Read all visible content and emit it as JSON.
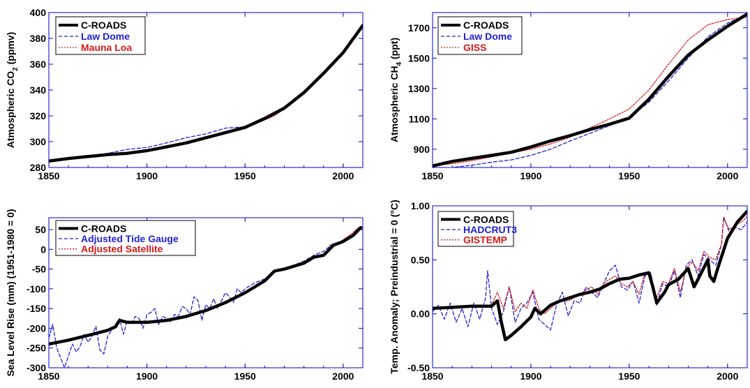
{
  "colors": {
    "model": "#000000",
    "series_blue": "#1f1fd6",
    "series_red": "#d41a1a",
    "axis": "#0000cc",
    "text": "#000000"
  },
  "chart_data": [
    {
      "id": "co2",
      "type": "line",
      "title": "",
      "xlabel": "",
      "ylabel": "Atmospheric CO",
      "ylabel_sub": "2",
      "ylabel_after": " (ppmv)",
      "xlim": [
        1850,
        2010
      ],
      "ylim": [
        280,
        400
      ],
      "xticks": [
        1850,
        1900,
        1950,
        2000
      ],
      "yticks": [
        280,
        300,
        320,
        340,
        360,
        380,
        400
      ],
      "ytick_labels": [
        "280",
        "300",
        "320",
        "340",
        "360",
        "380",
        "400"
      ],
      "legend_position": "top-left",
      "series": [
        {
          "name": "C-ROADS",
          "style": "solid-thick",
          "color": "#000000",
          "x": [
            1850,
            1860,
            1870,
            1880,
            1890,
            1900,
            1910,
            1920,
            1930,
            1940,
            1950,
            1960,
            1970,
            1980,
            1990,
            2000,
            2010
          ],
          "y": [
            285,
            287,
            288.5,
            290,
            291,
            293,
            296,
            299,
            303,
            307,
            311,
            318,
            326,
            338,
            353,
            369,
            390
          ]
        },
        {
          "name": "Law Dome",
          "style": "dashed",
          "color": "#1f1fd6",
          "x": [
            1850,
            1860,
            1870,
            1880,
            1890,
            1900,
            1910,
            1920,
            1930,
            1940,
            1950,
            1960,
            1970,
            1980,
            1990,
            2000,
            2010
          ],
          "y": [
            285,
            286.5,
            288,
            291,
            294,
            295.5,
            299,
            303,
            306,
            310.5,
            311.5,
            317,
            325,
            337,
            352,
            369,
            389
          ]
        },
        {
          "name": "Mauna Loa",
          "style": "dotted",
          "color": "#d41a1a",
          "x": [
            1958,
            1965,
            1970,
            1975,
            1980,
            1985,
            1990,
            1995,
            2000,
            2005,
            2010
          ],
          "y": [
            315.5,
            320,
            325.5,
            331,
            338.5,
            346,
            354,
            361,
            369.5,
            379.5,
            389.5
          ]
        }
      ]
    },
    {
      "id": "ch4",
      "type": "line",
      "title": "",
      "xlabel": "",
      "ylabel": "Atmospheric CH",
      "ylabel_sub": "4",
      "ylabel_after": " (ppt)",
      "xlim": [
        1850,
        2010
      ],
      "ylim": [
        780,
        1800
      ],
      "xticks": [
        1850,
        1900,
        1950,
        2000
      ],
      "yticks": [
        900,
        1100,
        1300,
        1500,
        1700
      ],
      "ytick_labels": [
        "900",
        "1100",
        "1300",
        "1500",
        "1700"
      ],
      "legend_position": "top-left",
      "series": [
        {
          "name": "C-ROADS",
          "style": "solid-thick",
          "color": "#000000",
          "x": [
            1850,
            1860,
            1870,
            1880,
            1890,
            1900,
            1910,
            1920,
            1930,
            1940,
            1950,
            1960,
            1970,
            1980,
            1990,
            2000,
            2010
          ],
          "y": [
            790,
            820,
            840,
            860,
            880,
            915,
            955,
            990,
            1030,
            1065,
            1105,
            1230,
            1380,
            1520,
            1620,
            1710,
            1790
          ]
        },
        {
          "name": "Law Dome",
          "style": "dashed",
          "color": "#1f1fd6",
          "x": [
            1850,
            1860,
            1870,
            1880,
            1890,
            1900,
            1910,
            1920,
            1930,
            1940,
            1950,
            1960,
            1970,
            1980,
            1990,
            2000,
            2010
          ],
          "y": [
            775,
            780,
            795,
            815,
            830,
            860,
            900,
            955,
            1005,
            1055,
            1110,
            1210,
            1350,
            1500,
            1640,
            1730,
            1790
          ]
        },
        {
          "name": "GISS",
          "style": "dotted",
          "color": "#d41a1a",
          "x": [
            1850,
            1860,
            1870,
            1880,
            1890,
            1900,
            1910,
            1920,
            1930,
            1940,
            1950,
            1960,
            1970,
            1980,
            1990,
            2000,
            2010
          ],
          "y": [
            790,
            805,
            825,
            850,
            875,
            900,
            935,
            980,
            1040,
            1100,
            1165,
            1290,
            1460,
            1620,
            1720,
            1755,
            1770
          ]
        }
      ]
    },
    {
      "id": "sea-level",
      "type": "line",
      "title": "",
      "xlabel": "",
      "ylabel": "Sea Level Rise (mm) (1951-1980 = 0)",
      "xlim": [
        1850,
        2010
      ],
      "ylim": [
        -300,
        80
      ],
      "xticks": [
        1850,
        1900,
        1950,
        2000
      ],
      "yticks": [
        -300,
        -250,
        -200,
        -150,
        -100,
        -50,
        0,
        50
      ],
      "ytick_labels": [
        "-300",
        "-250",
        "-200",
        "-150",
        "-100",
        "-50",
        "0",
        "50"
      ],
      "legend_position": "top-left",
      "series": [
        {
          "name": "C-ROADS",
          "style": "solid-thick",
          "color": "#000000",
          "x": [
            1850,
            1860,
            1870,
            1880,
            1884,
            1886,
            1890,
            1900,
            1910,
            1920,
            1930,
            1940,
            1950,
            1960,
            1965,
            1970,
            1980,
            1985,
            1990,
            1995,
            2000,
            2005,
            2009
          ],
          "y": [
            -240,
            -230,
            -218,
            -205,
            -196,
            -180,
            -185,
            -185,
            -180,
            -170,
            -155,
            -135,
            -110,
            -80,
            -55,
            -50,
            -35,
            -20,
            -15,
            10,
            20,
            35,
            55
          ]
        },
        {
          "name": "Adjusted Tide Gauge",
          "style": "dashed",
          "color": "#1f1fd6",
          "x": [
            1850,
            1852,
            1854,
            1856,
            1858,
            1860,
            1862,
            1864,
            1866,
            1868,
            1870,
            1872,
            1874,
            1876,
            1878,
            1880,
            1882,
            1884,
            1886,
            1888,
            1890,
            1892,
            1894,
            1896,
            1898,
            1900,
            1902,
            1904,
            1906,
            1908,
            1910,
            1912,
            1914,
            1916,
            1918,
            1920,
            1922,
            1924,
            1926,
            1928,
            1930,
            1932,
            1934,
            1936,
            1938,
            1940,
            1942,
            1944,
            1946,
            1948,
            1950,
            1955,
            1960,
            1965,
            1970,
            1975,
            1980,
            1985,
            1990,
            1995,
            2000
          ],
          "y": [
            -225,
            -190,
            -250,
            -275,
            -300,
            -270,
            -240,
            -260,
            -245,
            -215,
            -235,
            -220,
            -195,
            -255,
            -265,
            -220,
            -205,
            -190,
            -175,
            -215,
            -180,
            -190,
            -170,
            -175,
            -200,
            -165,
            -160,
            -150,
            -190,
            -170,
            -175,
            -185,
            -165,
            -170,
            -145,
            -150,
            -165,
            -120,
            -130,
            -180,
            -140,
            -150,
            -125,
            -150,
            -130,
            -110,
            -120,
            -135,
            -100,
            -110,
            -100,
            -85,
            -75,
            -55,
            -50,
            -40,
            -30,
            -15,
            -5,
            15,
            20
          ]
        },
        {
          "name": "Adjusted Satellite",
          "style": "dotted",
          "color": "#d41a1a",
          "x": [
            1993,
            1995,
            1997,
            1999,
            2001,
            2003,
            2005,
            2007,
            2009
          ],
          "y": [
            10,
            12,
            15,
            20,
            28,
            35,
            42,
            52,
            58
          ]
        }
      ]
    },
    {
      "id": "temperature",
      "type": "line",
      "title": "",
      "xlabel": "",
      "ylabel": "Temp. Anomaly; Preindustrial = 0 (°C)",
      "xlim": [
        1850,
        2010
      ],
      "ylim": [
        -0.5,
        1.0
      ],
      "xticks": [
        1850,
        1900,
        1950,
        2000
      ],
      "yticks": [
        -0.5,
        0,
        0.5,
        1.0
      ],
      "ytick_labels": [
        "-0.50",
        "0.00",
        "0.50",
        "1.00"
      ],
      "legend_position": "top-left",
      "series": [
        {
          "name": "C-ROADS",
          "style": "solid-thick",
          "color": "#000000",
          "x": [
            1850,
            1860,
            1870,
            1880,
            1883,
            1885,
            1887,
            1890,
            1895,
            1900,
            1902,
            1905,
            1910,
            1915,
            1920,
            1925,
            1930,
            1935,
            1940,
            1945,
            1950,
            1955,
            1960,
            1962,
            1964,
            1968,
            1970,
            1975,
            1980,
            1983,
            1985,
            1990,
            1991,
            1993,
            1995,
            2000,
            2005,
            2010
          ],
          "y": [
            0.05,
            0.06,
            0.07,
            0.07,
            0.12,
            -0.08,
            -0.24,
            -0.2,
            -0.12,
            -0.03,
            0.05,
            0.0,
            0.08,
            0.12,
            0.15,
            0.18,
            0.2,
            0.23,
            0.28,
            0.32,
            0.33,
            0.36,
            0.38,
            0.25,
            0.1,
            0.2,
            0.27,
            0.32,
            0.42,
            0.25,
            0.32,
            0.5,
            0.35,
            0.3,
            0.42,
            0.7,
            0.85,
            0.95
          ]
        },
        {
          "name": "HADCRUT3",
          "style": "dashed",
          "color": "#1f1fd6",
          "x": [
            1850,
            1853,
            1856,
            1859,
            1862,
            1865,
            1868,
            1871,
            1874,
            1877,
            1878,
            1880,
            1883,
            1886,
            1889,
            1892,
            1895,
            1898,
            1901,
            1904,
            1907,
            1910,
            1913,
            1916,
            1919,
            1922,
            1925,
            1928,
            1931,
            1934,
            1937,
            1940,
            1943,
            1946,
            1949,
            1952,
            1955,
            1958,
            1961,
            1964,
            1967,
            1970,
            1973,
            1976,
            1979,
            1982,
            1985,
            1988,
            1991,
            1994,
            1997,
            1998,
            2001,
            2004,
            2007,
            2010
          ],
          "y": [
            0.02,
            0.08,
            -0.05,
            0.1,
            -0.08,
            0.05,
            -0.12,
            0.1,
            -0.05,
            0.15,
            0.4,
            0.05,
            -0.1,
            0.02,
            0.25,
            -0.08,
            0.05,
            0.1,
            0.2,
            -0.05,
            -0.1,
            -0.15,
            0.08,
            0.2,
            -0.02,
            0.12,
            0.1,
            0.25,
            0.2,
            0.15,
            0.28,
            0.4,
            0.45,
            0.25,
            0.22,
            0.3,
            0.1,
            0.35,
            0.38,
            0.08,
            0.28,
            0.25,
            0.4,
            0.15,
            0.45,
            0.5,
            0.35,
            0.55,
            0.5,
            0.45,
            0.65,
            0.9,
            0.75,
            0.8,
            0.78,
            0.85
          ]
        },
        {
          "name": "GISTEMP",
          "style": "dotted",
          "color": "#d41a1a",
          "x": [
            1880,
            1883,
            1886,
            1889,
            1892,
            1895,
            1898,
            1901,
            1904,
            1907,
            1910,
            1913,
            1916,
            1919,
            1922,
            1925,
            1928,
            1931,
            1934,
            1937,
            1940,
            1943,
            1946,
            1949,
            1952,
            1955,
            1958,
            1961,
            1964,
            1967,
            1970,
            1973,
            1976,
            1979,
            1982,
            1985,
            1988,
            1991,
            1994,
            1997,
            1998,
            2001,
            2004,
            2007,
            2010
          ],
          "y": [
            0.08,
            0.2,
            0.05,
            0.25,
            0.02,
            0.1,
            0.05,
            0.22,
            0.05,
            0.0,
            0.05,
            0.1,
            0.12,
            0.12,
            0.15,
            0.18,
            0.22,
            0.25,
            0.18,
            0.28,
            0.32,
            0.35,
            0.28,
            0.25,
            0.3,
            0.18,
            0.38,
            0.35,
            0.15,
            0.3,
            0.28,
            0.42,
            0.2,
            0.42,
            0.48,
            0.4,
            0.58,
            0.52,
            0.5,
            0.65,
            0.88,
            0.78,
            0.82,
            0.85,
            0.9
          ]
        }
      ]
    }
  ]
}
